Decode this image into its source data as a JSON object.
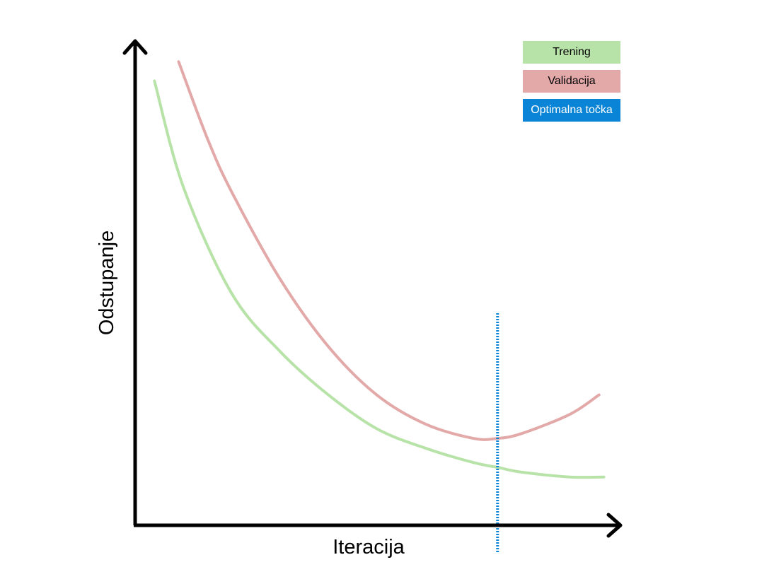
{
  "chart_data": {
    "type": "line",
    "title": "",
    "xlabel": "Iteracija",
    "ylabel": "Odstupanje",
    "xlim": [
      0,
      100
    ],
    "ylim": [
      0,
      100
    ],
    "grid": false,
    "legend_position": "top-right",
    "series": [
      {
        "name": "Trening",
        "color": "#b8e3a8",
        "x": [
          4,
          10,
          20,
          30,
          40,
          50,
          60,
          70,
          75,
          80,
          90,
          97
        ],
        "y": [
          92,
          70,
          48,
          36,
          27,
          20,
          16,
          13,
          12,
          11,
          10,
          10
        ]
      },
      {
        "name": "Validacija",
        "color": "#e3a9a9",
        "x": [
          9,
          15,
          20,
          30,
          40,
          50,
          60,
          70,
          75,
          80,
          90,
          96
        ],
        "y": [
          96,
          80,
          69,
          51,
          37,
          27,
          21,
          18,
          18,
          19,
          23,
          27
        ]
      }
    ],
    "annotations": [
      {
        "type": "vline",
        "x": 75,
        "label": "Optimalna točka",
        "color": "#0a84d6"
      }
    ]
  },
  "legend": {
    "items": [
      {
        "label": "Trening",
        "bg": "#b8e3a8",
        "fg": "#000000"
      },
      {
        "label": "Validacija",
        "bg": "#e3a9a9",
        "fg": "#000000"
      },
      {
        "label": "Optimalna točka",
        "bg": "#0a84d6",
        "fg": "#ffffff"
      }
    ]
  }
}
